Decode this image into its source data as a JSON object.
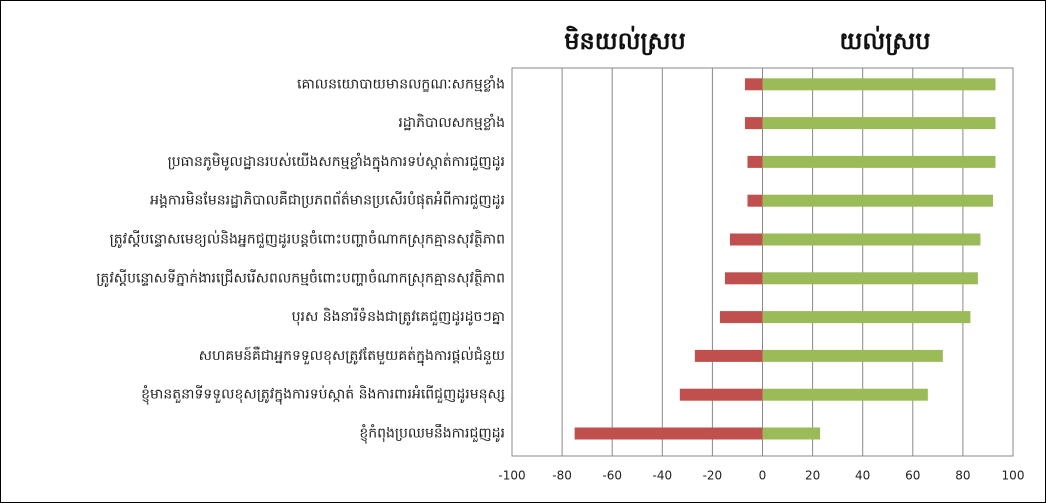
{
  "chart_data": {
    "type": "bar",
    "orientation": "horizontal",
    "categories": [
      "គោលនយោបាយមានលក្ខណៈសកម្មខ្លាំង",
      "រដ្ឋាភិបាលសកម្មខ្លាំង",
      "ប្រធានភូមិមូលដ្ឋានរបស់យើងសកម្មខ្លាំងក្នុងការទប់ស្កាត់ការជួញដូរ",
      "អង្គការមិនមែនរដ្ឋាភិបាលគឺជាប្រភពព័ត៌មានប្រសើរបំផុតអំពីការជួញដូរ",
      "ត្រូវស្តីបន្ទោសមេខ្យល់និងអ្នកជួញដូរបន្តចំពោះបញ្ហាចំណាកស្រុកគ្មានសុវត្ថិភាព",
      "ត្រូវស្តីបន្ទោសទីភ្នាក់ងារជ្រើសរើសពលកម្មចំពោះបញ្ហាចំណាកស្រុកគ្មានសុវត្ថិភាព",
      "បុរស និងនារីទំនងជាត្រូវគេជួញដូរដូចៗគ្នា",
      "សហគមន៍គឺជាអ្នកទទួលខុសត្រូវតែមួយគត់ក្នុងការផ្តល់ជំនួយ",
      "ខ្ញុំមានតួនាទីទទួលខុសត្រូវក្នុងការទប់ស្កាត់ និងការពារអំពើជួញដូរមនុស្ស",
      "ខ្ញុំកំពុងប្រឈមនឹងការជួញដូរ"
    ],
    "series": [
      {
        "name": "មិនយល់ស្រប",
        "color": "#c0504d",
        "values": [
          -7,
          -7,
          -6,
          -6,
          -13,
          -15,
          -17,
          -27,
          -33,
          -75
        ]
      },
      {
        "name": "យល់ស្រប",
        "color": "#9bbb59",
        "values": [
          93,
          93,
          93,
          92,
          87,
          86,
          83,
          72,
          66,
          23
        ]
      }
    ],
    "xlim": [
      -100,
      100
    ],
    "xticks": [
      -100,
      -80,
      -60,
      -40,
      -20,
      0,
      20,
      40,
      60,
      80,
      100
    ],
    "grid": true
  }
}
